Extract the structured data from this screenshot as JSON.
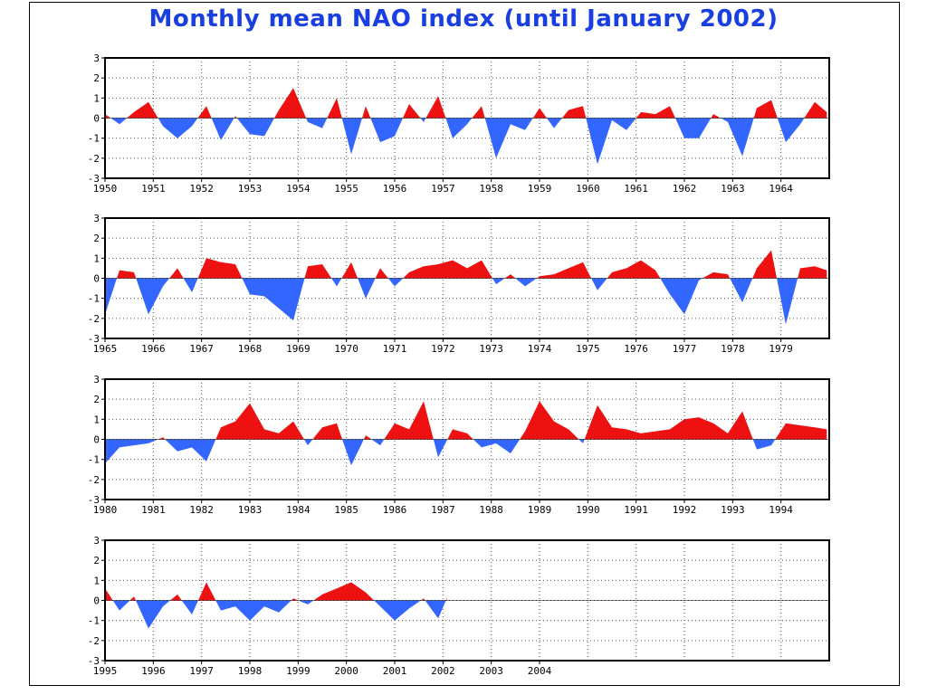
{
  "title": "Monthly mean NAO index (until January 2002)",
  "colors": {
    "positive": "#ee1111",
    "negative": "#3366ff",
    "title": "#1a3fe0"
  },
  "chart_data": [
    {
      "type": "area",
      "panel": 1,
      "x_start_year": 1950,
      "xticks": [
        "1950",
        "1951",
        "1952",
        "1953",
        "1954",
        "1955",
        "1956",
        "1957",
        "1958",
        "1959",
        "1960",
        "1961",
        "1962",
        "1963",
        "1964"
      ],
      "yticks": [
        "3",
        "2",
        "1",
        "0",
        "-1",
        "-2",
        "-3"
      ],
      "ylim": [
        -3,
        3
      ],
      "grid": true,
      "x": [
        1950.0,
        1950.3,
        1950.6,
        1950.9,
        1951.2,
        1951.5,
        1951.8,
        1952.1,
        1952.4,
        1952.7,
        1953.0,
        1953.3,
        1953.6,
        1953.9,
        1954.2,
        1954.5,
        1954.8,
        1955.1,
        1955.4,
        1955.7,
        1956.0,
        1956.3,
        1956.6,
        1956.9,
        1957.2,
        1957.5,
        1957.8,
        1958.1,
        1958.4,
        1958.7,
        1959.0,
        1959.3,
        1959.6,
        1959.9,
        1960.2,
        1960.5,
        1960.8,
        1961.1,
        1961.4,
        1961.7,
        1962.0,
        1962.3,
        1962.6,
        1962.9,
        1963.2,
        1963.5,
        1963.8,
        1964.1,
        1964.4,
        1964.7,
        1964.95
      ],
      "y": [
        0.2,
        -0.3,
        0.3,
        0.8,
        -0.4,
        -1.0,
        -0.4,
        0.6,
        -1.1,
        0.1,
        -0.8,
        -0.9,
        0.4,
        1.5,
        -0.2,
        -0.5,
        1.0,
        -1.8,
        0.6,
        -1.2,
        -0.9,
        0.7,
        -0.2,
        1.1,
        -1.0,
        -0.3,
        0.6,
        -2.0,
        -0.3,
        -0.6,
        0.5,
        -0.5,
        0.4,
        0.6,
        -2.3,
        -0.1,
        -0.6,
        0.3,
        0.2,
        0.6,
        -1.0,
        -1.0,
        0.2,
        -0.2,
        -1.9,
        0.5,
        0.9,
        -1.2,
        -0.3,
        0.8,
        0.3
      ]
    },
    {
      "type": "area",
      "panel": 2,
      "x_start_year": 1965,
      "xticks": [
        "1965",
        "1966",
        "1967",
        "1968",
        "1969",
        "1970",
        "1971",
        "1972",
        "1973",
        "1974",
        "1975",
        "1976",
        "1977",
        "1978",
        "1979"
      ],
      "yticks": [
        "3",
        "2",
        "1",
        "0",
        "-1",
        "-2",
        "-3"
      ],
      "ylim": [
        -3,
        3
      ],
      "grid": true,
      "x": [
        1965.0,
        1965.3,
        1965.6,
        1965.9,
        1966.2,
        1966.5,
        1966.8,
        1967.1,
        1967.4,
        1967.7,
        1968.0,
        1968.3,
        1968.6,
        1968.9,
        1969.2,
        1969.5,
        1969.8,
        1970.1,
        1970.4,
        1970.7,
        1971.0,
        1971.3,
        1971.6,
        1971.9,
        1972.2,
        1972.5,
        1972.8,
        1973.1,
        1973.4,
        1973.7,
        1974.0,
        1974.3,
        1974.6,
        1974.9,
        1975.2,
        1975.5,
        1975.8,
        1976.1,
        1976.4,
        1976.7,
        1977.0,
        1977.3,
        1977.6,
        1977.9,
        1978.2,
        1978.5,
        1978.8,
        1979.1,
        1979.4,
        1979.7,
        1979.95
      ],
      "y": [
        -1.8,
        0.4,
        0.3,
        -1.8,
        -0.4,
        0.5,
        -0.7,
        1.0,
        0.8,
        0.7,
        -0.8,
        -0.9,
        -1.5,
        -2.1,
        0.6,
        0.7,
        -0.4,
        0.8,
        -1.0,
        0.5,
        -0.4,
        0.3,
        0.6,
        0.7,
        0.9,
        0.5,
        0.9,
        -0.3,
        0.2,
        -0.4,
        0.1,
        0.2,
        0.5,
        0.8,
        -0.6,
        0.3,
        0.5,
        0.9,
        0.4,
        -0.8,
        -1.8,
        -0.1,
        0.3,
        0.2,
        -1.2,
        0.5,
        1.4,
        -2.3,
        0.5,
        0.6,
        0.4
      ]
    },
    {
      "type": "area",
      "panel": 3,
      "x_start_year": 1980,
      "xticks": [
        "1980",
        "1981",
        "1982",
        "1983",
        "1984",
        "1985",
        "1986",
        "1987",
        "1988",
        "1989",
        "1990",
        "1991",
        "1992",
        "1993",
        "1994"
      ],
      "yticks": [
        "3",
        "2",
        "1",
        "0",
        "-1",
        "-2",
        "-3"
      ],
      "ylim": [
        -3,
        3
      ],
      "grid": true,
      "x": [
        1980.0,
        1980.3,
        1980.6,
        1980.9,
        1981.2,
        1981.5,
        1981.8,
        1982.1,
        1982.4,
        1982.7,
        1983.0,
        1983.3,
        1983.6,
        1983.9,
        1984.2,
        1984.5,
        1984.8,
        1985.1,
        1985.4,
        1985.7,
        1986.0,
        1986.3,
        1986.6,
        1986.9,
        1987.2,
        1987.5,
        1987.8,
        1988.1,
        1988.4,
        1988.7,
        1989.0,
        1989.3,
        1989.6,
        1989.9,
        1990.2,
        1990.5,
        1990.8,
        1991.1,
        1991.4,
        1991.7,
        1992.0,
        1992.3,
        1992.6,
        1992.9,
        1993.2,
        1993.5,
        1993.8,
        1994.1,
        1994.4,
        1994.7,
        1994.95
      ],
      "y": [
        -1.2,
        -0.4,
        -0.3,
        -0.2,
        0.1,
        -0.6,
        -0.4,
        -1.1,
        0.6,
        0.9,
        1.8,
        0.5,
        0.3,
        0.9,
        -0.3,
        0.6,
        0.8,
        -1.3,
        0.2,
        -0.3,
        0.8,
        0.5,
        1.9,
        -0.9,
        0.5,
        0.3,
        -0.4,
        -0.2,
        -0.7,
        0.4,
        1.9,
        0.9,
        0.5,
        -0.2,
        1.7,
        0.6,
        0.5,
        0.3,
        0.4,
        0.5,
        1.0,
        1.1,
        0.8,
        0.3,
        1.4,
        -0.5,
        -0.3,
        0.8,
        0.7,
        0.6,
        0.5
      ]
    },
    {
      "type": "area",
      "panel": 4,
      "x_start_year": 1995,
      "xticks": [
        "1995",
        "1996",
        "1997",
        "1998",
        "1999",
        "2000",
        "2001",
        "2002",
        "2003",
        "2004"
      ],
      "yticks": [
        "3",
        "2",
        "1",
        "0",
        "-1",
        "-2",
        "-3"
      ],
      "ylim": [
        -3,
        3
      ],
      "grid": true,
      "x": [
        1995.0,
        1995.3,
        1995.6,
        1995.9,
        1996.2,
        1996.5,
        1996.8,
        1997.1,
        1997.4,
        1997.7,
        1998.0,
        1998.3,
        1998.6,
        1998.9,
        1999.2,
        1999.5,
        1999.8,
        2000.1,
        2000.4,
        2000.7,
        2001.0,
        2001.3,
        2001.6,
        2001.9,
        2002.08
      ],
      "y": [
        0.6,
        -0.5,
        0.2,
        -1.4,
        -0.3,
        0.3,
        -0.7,
        0.9,
        -0.5,
        -0.3,
        -1.0,
        -0.3,
        -0.6,
        0.1,
        -0.2,
        0.3,
        0.6,
        0.9,
        0.4,
        -0.3,
        -1.0,
        -0.4,
        0.1,
        -0.9,
        0.1
      ]
    }
  ]
}
